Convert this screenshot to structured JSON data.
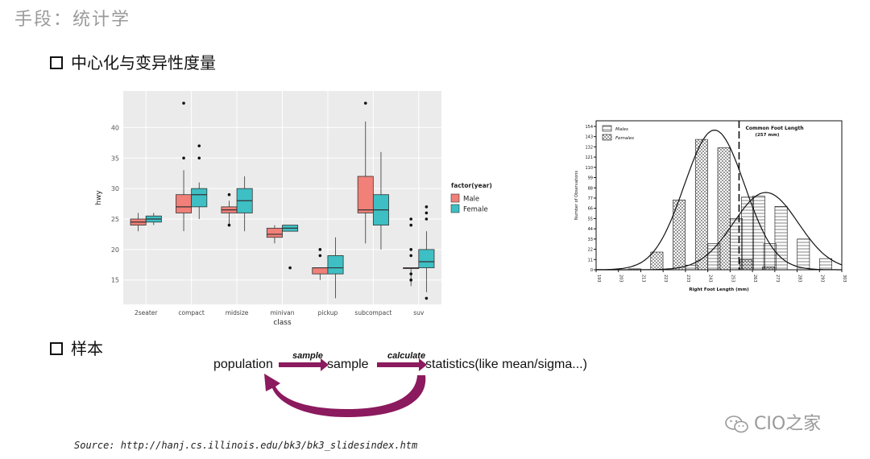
{
  "slide": {
    "title": "手段：统计学",
    "bullet1": "中心化与变异性度量",
    "bullet2": "样本",
    "source": "Source: http://hanj.cs.illinois.edu/bk3/bk3_slidesindex.htm",
    "watermark": "CIO之家"
  },
  "flow": {
    "population": "population",
    "sample": "sample",
    "statistics": "statistics(like mean/sigma...)",
    "arrow1_label": "sample",
    "arrow2_label": "calculate",
    "arrow_color": "#8b1a5e"
  },
  "chart_data": [
    {
      "type": "boxplot",
      "xlabel": "class",
      "ylabel": "hwy",
      "ylim": [
        11,
        46
      ],
      "yticks": [
        15,
        20,
        25,
        30,
        35,
        40
      ],
      "categories": [
        "2seater",
        "compact",
        "midsize",
        "minivan",
        "pickup",
        "subcompact",
        "suv"
      ],
      "legend": {
        "title": "factor(year)",
        "position": "right"
      },
      "grid": true,
      "series": [
        {
          "name": "Male",
          "color": "#f08078",
          "boxes": [
            {
              "min": 23,
              "q1": 24,
              "median": 24.5,
              "q3": 25,
              "max": 26,
              "outliers": []
            },
            {
              "min": 23,
              "q1": 26,
              "median": 27,
              "q3": 29,
              "max": 33,
              "outliers": [
                35,
                44
              ]
            },
            {
              "min": 24,
              "q1": 26,
              "median": 26.5,
              "q3": 27,
              "max": 28,
              "outliers": [
                29,
                24
              ]
            },
            {
              "min": 21,
              "q1": 22,
              "median": 22.5,
              "q3": 23.5,
              "max": 24,
              "outliers": []
            },
            {
              "min": 15,
              "q1": 16,
              "median": 17,
              "q3": 17,
              "max": 17,
              "outliers": [
                20,
                19
              ]
            },
            {
              "min": 21,
              "q1": 26,
              "median": 26.5,
              "q3": 32,
              "max": 41,
              "outliers": [
                44
              ]
            },
            {
              "min": 14,
              "q1": 17,
              "median": 17,
              "q3": 17,
              "max": 17,
              "outliers": [
                25,
                24,
                20,
                19,
                16,
                15
              ]
            }
          ]
        },
        {
          "name": "Female",
          "color": "#3dbfc4",
          "boxes": [
            {
              "min": 24,
              "q1": 24.5,
              "median": 25,
              "q3": 25.5,
              "max": 26,
              "outliers": []
            },
            {
              "min": 25,
              "q1": 27,
              "median": 29,
              "q3": 30,
              "max": 31,
              "outliers": [
                37,
                35
              ]
            },
            {
              "min": 23,
              "q1": 26,
              "median": 28,
              "q3": 30,
              "max": 32,
              "outliers": []
            },
            {
              "min": 23,
              "q1": 23,
              "median": 23.5,
              "q3": 24,
              "max": 24,
              "outliers": [
                17
              ]
            },
            {
              "min": 12,
              "q1": 16,
              "median": 17,
              "q3": 19,
              "max": 22,
              "outliers": []
            },
            {
              "min": 20,
              "q1": 24,
              "median": 26.5,
              "q3": 29,
              "max": 36,
              "outliers": []
            },
            {
              "min": 13,
              "q1": 17,
              "median": 18,
              "q3": 20,
              "max": 23,
              "outliers": [
                27,
                26,
                25,
                12
              ]
            }
          ]
        }
      ]
    },
    {
      "type": "histogram",
      "xlabel": "Right Foot Length (mm)",
      "ylabel": "Number of Observations",
      "xticks": [
        193,
        203,
        213,
        223,
        233,
        243,
        253,
        263,
        273,
        283,
        293,
        303
      ],
      "yticks": [
        0,
        11,
        22,
        33,
        44,
        55,
        66,
        77,
        88,
        99,
        110,
        121,
        132,
        143,
        154
      ],
      "xlim": [
        193,
        303
      ],
      "ylim": [
        0,
        160
      ],
      "annotation": {
        "label": "Common Foot Length",
        "value_label": "(257 mm)",
        "x": 257
      },
      "series": [
        {
          "name": "Males",
          "bins": [
            {
              "x": 233,
              "value": 5
            },
            {
              "x": 243,
              "value": 28
            },
            {
              "x": 253,
              "value": 55
            },
            {
              "x": 258,
              "value": 78
            },
            {
              "x": 263,
              "value": 79
            },
            {
              "x": 268,
              "value": 28
            },
            {
              "x": 273,
              "value": 68
            },
            {
              "x": 283,
              "value": 33
            },
            {
              "x": 293,
              "value": 12
            }
          ]
        },
        {
          "name": "Females",
          "bins": [
            {
              "x": 213,
              "value": 1
            },
            {
              "x": 223,
              "value": 19
            },
            {
              "x": 233,
              "value": 75
            },
            {
              "x": 243,
              "value": 140
            },
            {
              "x": 253,
              "value": 131
            },
            {
              "x": 263,
              "value": 11
            },
            {
              "x": 273,
              "value": 3
            }
          ]
        }
      ],
      "curves": [
        {
          "mean": 246,
          "sd": 13.5,
          "peak": 150
        },
        {
          "mean": 269,
          "sd": 14.5,
          "peak": 83
        }
      ]
    }
  ]
}
